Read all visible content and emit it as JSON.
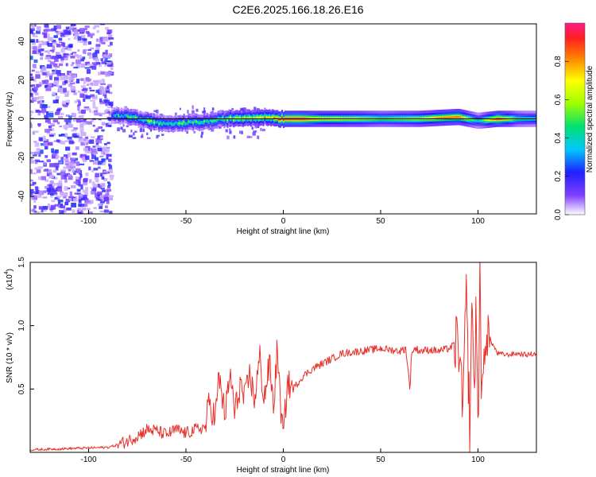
{
  "title": "C2E6.2025.166.18.26.E16",
  "chart_data": [
    {
      "type": "heatmap",
      "xlabel": "Height of straight line (km)",
      "ylabel": "Frequency (Hz)",
      "xlim": [
        -130,
        130
      ],
      "ylim": [
        -49,
        49
      ],
      "xticks": [
        -100,
        -50,
        0,
        50,
        100
      ],
      "yticks": [
        -40,
        -20,
        0,
        20,
        40
      ],
      "colorbar": {
        "label": "Normalized spectral amplitude",
        "range": [
          0,
          1
        ],
        "ticks": [
          "0.0",
          "0.2",
          "0.4",
          "0.6",
          "0.8"
        ]
      },
      "ridge": [
        {
          "x": -88,
          "f": 2.0,
          "amp": 0.3
        },
        {
          "x": -78,
          "f": 1.0,
          "amp": 0.4
        },
        {
          "x": -70,
          "f": -1.0,
          "amp": 0.45
        },
        {
          "x": -60,
          "f": -3.0,
          "amp": 0.4
        },
        {
          "x": -50,
          "f": -2.0,
          "amp": 0.45
        },
        {
          "x": -40,
          "f": -1.5,
          "amp": 0.4
        },
        {
          "x": -30,
          "f": 0.0,
          "amp": 0.5
        },
        {
          "x": -20,
          "f": 0.5,
          "amp": 0.6
        },
        {
          "x": -10,
          "f": 1.0,
          "amp": 0.55
        },
        {
          "x": 0,
          "f": 0.0,
          "amp": 0.95
        },
        {
          "x": 10,
          "f": 0.0,
          "amp": 0.95
        },
        {
          "x": 20,
          "f": 0.0,
          "amp": 0.75
        },
        {
          "x": 30,
          "f": 0.0,
          "amp": 0.7
        },
        {
          "x": 40,
          "f": 0.0,
          "amp": 0.65
        },
        {
          "x": 50,
          "f": 0.0,
          "amp": 0.55
        },
        {
          "x": 60,
          "f": 0.0,
          "amp": 0.6
        },
        {
          "x": 70,
          "f": 0.0,
          "amp": 0.65
        },
        {
          "x": 80,
          "f": 0.5,
          "amp": 0.8
        },
        {
          "x": 90,
          "f": 1.0,
          "amp": 0.85
        },
        {
          "x": 100,
          "f": -1.0,
          "amp": 0.4
        },
        {
          "x": 110,
          "f": 0.0,
          "amp": 0.95
        },
        {
          "x": 120,
          "f": 0.0,
          "amp": 0.5
        },
        {
          "x": 130,
          "f": 0.0,
          "amp": 0.4
        }
      ]
    },
    {
      "type": "line",
      "xlabel": "Height of straight line (km)",
      "ylabel": "SNR (10 * v/v)",
      "y_multiplier": "(x10",
      "y_multiplier_exp": "4",
      "xlim": [
        -130,
        130
      ],
      "ylim": [
        0,
        1.5
      ],
      "xticks": [
        -100,
        -50,
        0,
        50,
        100
      ],
      "yticks": [
        "0.5",
        "1.0",
        "1.5"
      ],
      "color": "#e8302a",
      "series": [
        {
          "x": [
            -130,
            -110,
            -90,
            -85,
            -80,
            -75,
            -70,
            -65,
            -60,
            -55,
            -50,
            -45,
            -40,
            -38,
            -35,
            -33,
            -30,
            -27,
            -25,
            -22,
            -20,
            -17,
            -15,
            -12,
            -10,
            -7,
            -5,
            -3,
            -2,
            0,
            2,
            5,
            10,
            15,
            20,
            25,
            30,
            35,
            40,
            45,
            50,
            55,
            60,
            63,
            65,
            66,
            68,
            70,
            75,
            80,
            85,
            88,
            90,
            92,
            94,
            96,
            97,
            98,
            99,
            100,
            101,
            102,
            104,
            106,
            110,
            115,
            120,
            125,
            130
          ],
          "y": [
            0.02,
            0.03,
            0.04,
            0.06,
            0.09,
            0.13,
            0.18,
            0.17,
            0.14,
            0.18,
            0.15,
            0.18,
            0.2,
            0.4,
            0.26,
            0.6,
            0.3,
            0.62,
            0.3,
            0.55,
            0.4,
            0.63,
            0.4,
            0.75,
            0.42,
            0.7,
            0.35,
            0.85,
            0.5,
            0.1,
            0.55,
            0.5,
            0.6,
            0.66,
            0.7,
            0.74,
            0.78,
            0.79,
            0.8,
            0.81,
            0.82,
            0.81,
            0.8,
            0.82,
            0.5,
            0.8,
            0.82,
            0.8,
            0.81,
            0.8,
            0.82,
            0.85,
            0.9,
            0.3,
            1.2,
            0.1,
            1.48,
            0.2,
            1.3,
            0.05,
            1.5,
            0.3,
            1.0,
            0.9,
            0.78,
            0.77,
            0.78,
            0.77,
            0.78
          ]
        }
      ]
    }
  ]
}
